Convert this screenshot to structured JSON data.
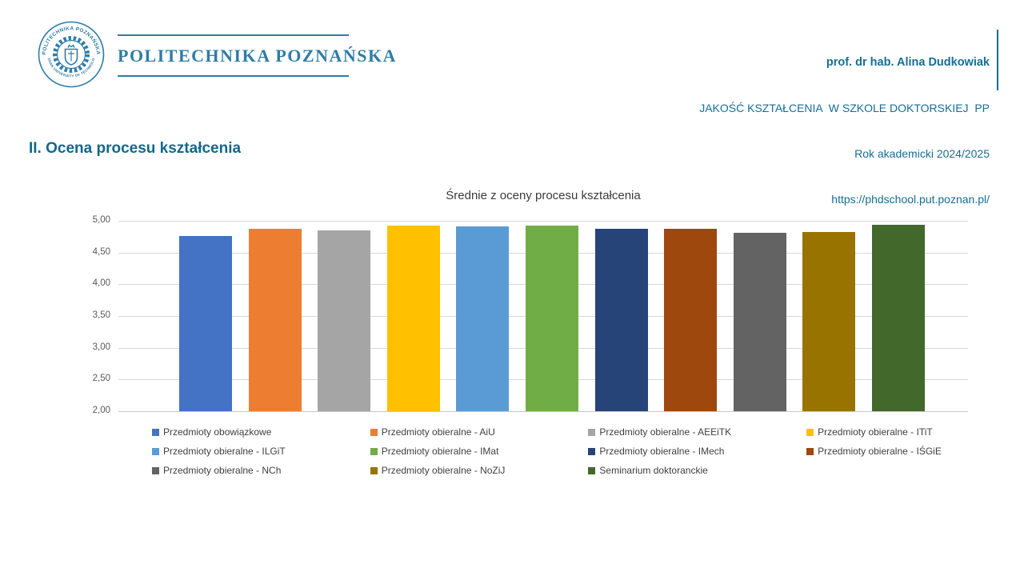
{
  "accent_color": "#156E96",
  "header": {
    "logo": {
      "color": "#2E7DA6",
      "seal_text_top": "POLITECHNIKA POZNAŃSKA",
      "seal_text_bottom": "POZNAN UNIVERSITY OF TECHNOLOGY",
      "logotype": "POLITECHNIKA POZNAŃSKA"
    },
    "info": {
      "line1": "prof. dr hab. Alina Dudkowiak",
      "line2": "JAKOŚĆ KSZTAŁCENIA  W SZKOLE DOKTORSKIEJ  PP",
      "line3": "Rok akademicki 2024/2025",
      "line4": "https://phdschool.put.poznan.pl/"
    }
  },
  "section_title": "II. Ocena procesu kształcenia",
  "chart_data": {
    "type": "bar",
    "title": "Średnie z oceny procesu kształcenia",
    "series": [
      {
        "name": "Przedmioty obowiązkowe",
        "value": 4.76,
        "color": "#4472C4"
      },
      {
        "name": "Przedmioty obieralne - AiU",
        "value": 4.88,
        "color": "#ED7D31"
      },
      {
        "name": "Przedmioty obieralne - AEEiTK",
        "value": 4.85,
        "color": "#A5A5A5"
      },
      {
        "name": "Przedmioty obieralne - ITiT",
        "value": 4.93,
        "color": "#FFC000"
      },
      {
        "name": "Przedmioty obieralne - ILGiT",
        "value": 4.91,
        "color": "#5B9BD5"
      },
      {
        "name": "Przedmioty obieralne - IMat",
        "value": 4.93,
        "color": "#70AD47"
      },
      {
        "name": "Przedmioty obieralne - IMech",
        "value": 4.87,
        "color": "#264478"
      },
      {
        "name": "Przedmioty obieralne - IŚGiE",
        "value": 4.88,
        "color": "#9E480E"
      },
      {
        "name": "Przedmioty obieralne - NCh",
        "value": 4.81,
        "color": "#636363"
      },
      {
        "name": "Przedmioty obieralne - NoZiJ",
        "value": 4.82,
        "color": "#997300"
      },
      {
        "name": "Seminarium doktoranckie",
        "value": 4.94,
        "color": "#43682B"
      }
    ],
    "ylim": [
      2.0,
      5.0
    ],
    "ytick_step": 0.5,
    "ytick_labels": [
      "5,00",
      "4,50",
      "4,00",
      "3,50",
      "3,00",
      "2,50",
      "2,00"
    ],
    "grid": true,
    "legend_position": "bottom",
    "xlabel": "",
    "ylabel": ""
  }
}
